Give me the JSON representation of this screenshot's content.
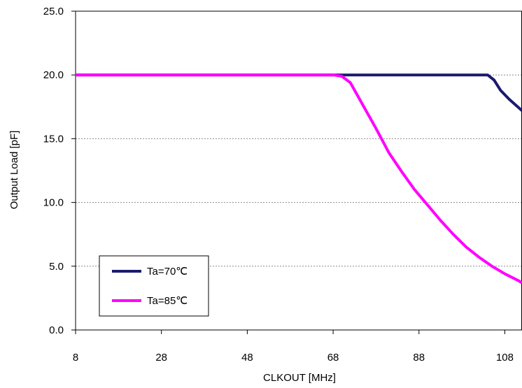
{
  "chart_data": {
    "type": "line",
    "title": "",
    "xlabel": "CLKOUT [MHz]",
    "ylabel": "Output Load [pF]",
    "xlim": [
      8,
      112
    ],
    "ylim": [
      0,
      25
    ],
    "x_ticks": [
      "8",
      "28",
      "48",
      "68",
      "88",
      "108"
    ],
    "y_ticks": [
      "0.0",
      "5.0",
      "10.0",
      "15.0",
      "20.0",
      "25.0"
    ],
    "grid": "horizontal dashed",
    "legend": "bottom-left",
    "series": [
      {
        "name": "Ta=70℃",
        "color": "#1a1a6e",
        "x": [
          8,
          70,
          104,
          105.5,
          107,
          109,
          112
        ],
        "y": [
          20,
          20,
          20,
          19.6,
          18.8,
          18.1,
          17.2
        ]
      },
      {
        "name": "Ta=85℃",
        "color": "#ff00ff",
        "x": [
          8,
          68,
          70,
          72,
          75,
          78,
          81,
          84,
          87,
          90,
          93,
          96,
          99,
          102,
          105,
          108,
          111,
          112
        ],
        "y": [
          20,
          20,
          19.9,
          19.4,
          17.6,
          15.8,
          13.9,
          12.4,
          11.0,
          9.8,
          8.6,
          7.5,
          6.5,
          5.7,
          5.0,
          4.4,
          3.9,
          3.7
        ]
      }
    ]
  }
}
